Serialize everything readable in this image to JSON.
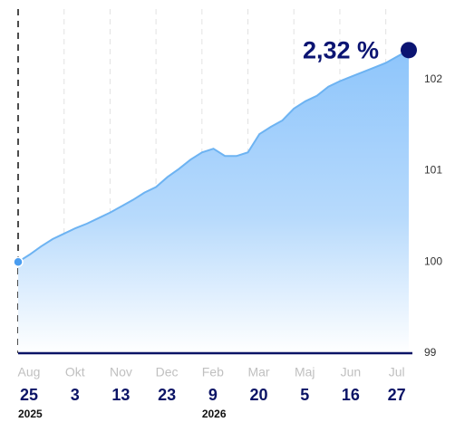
{
  "chart_data": {
    "type": "area",
    "change_label": "2,32 %",
    "x": [
      "2025-08-25",
      "2025-09-04",
      "2025-09-14",
      "2025-09-24",
      "2025-10-03",
      "2025-10-13",
      "2025-10-23",
      "2025-11-02",
      "2025-11-13",
      "2025-11-23",
      "2025-12-03",
      "2025-12-13",
      "2025-12-23",
      "2026-01-04",
      "2026-01-16",
      "2026-01-28",
      "2026-02-09",
      "2026-02-19",
      "2026-03-01",
      "2026-03-10",
      "2026-03-20",
      "2026-03-31",
      "2026-04-12",
      "2026-04-24",
      "2026-05-05",
      "2026-05-15",
      "2026-05-26",
      "2026-06-05",
      "2026-06-16",
      "2026-06-26",
      "2026-07-06",
      "2026-07-16",
      "2026-07-27",
      "2026-08-06",
      "2026-08-14"
    ],
    "series": [
      {
        "color": "#6db3f2",
        "values": [
          100.0,
          100.08,
          100.17,
          100.25,
          100.31,
          100.37,
          100.42,
          100.48,
          100.54,
          100.61,
          100.68,
          100.76,
          100.82,
          100.93,
          101.02,
          101.12,
          101.2,
          101.24,
          101.16,
          101.16,
          101.2,
          101.4,
          101.48,
          101.55,
          101.68,
          101.76,
          101.82,
          101.92,
          101.98,
          102.03,
          102.08,
          102.13,
          102.18,
          102.25,
          102.32
        ]
      }
    ],
    "xticks": [
      {
        "value": "2025-08-25",
        "month": "Aug",
        "day": "25",
        "year": "2025"
      },
      {
        "value": "2025-10-03",
        "month": "Okt",
        "day": "3"
      },
      {
        "value": "2025-11-13",
        "month": "Nov",
        "day": "13"
      },
      {
        "value": "2025-12-23",
        "month": "Dec",
        "day": "23"
      },
      {
        "value": "2026-02-09",
        "month": "Feb",
        "day": "9",
        "year": "2026"
      },
      {
        "value": "2026-03-20",
        "month": "Mar",
        "day": "20"
      },
      {
        "value": "2026-05-05",
        "month": "Maj",
        "day": "5"
      },
      {
        "value": "2026-06-16",
        "month": "Jun",
        "day": "16"
      },
      {
        "value": "2026-07-27",
        "month": "Jul",
        "day": "27"
      }
    ],
    "ylim": [
      99,
      102.77
    ],
    "yticks": [
      99,
      100,
      101,
      102
    ],
    "grid": true
  }
}
